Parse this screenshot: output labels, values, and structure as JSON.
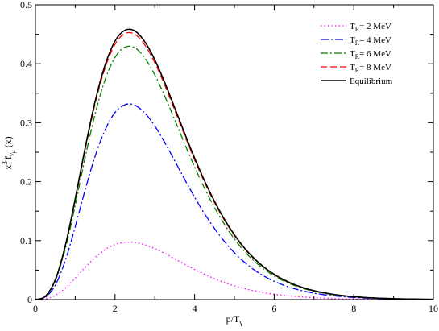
{
  "chart_data": {
    "type": "line",
    "title": "",
    "xlabel": "p/T",
    "xlabel_sub": "γ",
    "ylabel": {
      "base": "x",
      "sup": "3",
      "f": "f",
      "sub": "ν",
      "subsub": "μ",
      "arg": "(x)"
    },
    "xlim": [
      0,
      10
    ],
    "ylim": [
      0,
      0.5
    ],
    "xticks": [
      0,
      2,
      4,
      6,
      8,
      10
    ],
    "xtick_labels": [
      "0",
      "2",
      "4",
      "6",
      "8",
      "10"
    ],
    "yticks": [
      0,
      0.1,
      0.2,
      0.3,
      0.4,
      0.5
    ],
    "ytick_labels": [
      "0",
      "0.1",
      "0.2",
      "0.3",
      "0.4",
      "0.5"
    ],
    "grid": false,
    "legend_position": "top-right",
    "x": [
      0,
      0.25,
      0.5,
      0.75,
      1,
      1.25,
      1.5,
      1.75,
      2,
      2.25,
      2.5,
      2.75,
      3,
      3.25,
      3.5,
      3.75,
      4,
      4.25,
      4.5,
      4.75,
      5,
      5.25,
      5.5,
      5.75,
      6,
      6.25,
      6.5,
      6.75,
      7,
      7.25,
      7.5,
      7.75,
      8,
      8.25,
      8.5,
      8.75,
      9,
      9.25,
      9.5,
      9.75,
      10
    ],
    "series": [
      {
        "name": "T_R = 2 MeV",
        "legend": {
          "base": "T",
          "sub": "R",
          "rest": "= 2 MeV"
        },
        "color": "#ff00ff",
        "dash": "1.5 3",
        "values": [
          0,
          0.0012,
          0.0072,
          0.0194,
          0.0363,
          0.0547,
          0.0715,
          0.0846,
          0.0933,
          0.0972,
          0.0969,
          0.093,
          0.0865,
          0.0783,
          0.0692,
          0.06,
          0.0511,
          0.0429,
          0.0354,
          0.0289,
          0.0233,
          0.0187,
          0.0148,
          0.0117,
          0.0091,
          0.0071,
          0.0055,
          0.0042,
          0.0032,
          0.0025,
          0.0019,
          0.0014,
          0.0011,
          0.0008,
          0.0006,
          0.0005,
          0.0003,
          0.0003,
          0.0002,
          0.0001,
          0.0001
        ]
      },
      {
        "name": "T_R = 4 MeV",
        "legend": {
          "base": "T",
          "sub": "R",
          "rest": "= 4 MeV"
        },
        "color": "#0000ff",
        "dash": "10 3 2 3",
        "values": [
          0,
          0.004,
          0.0245,
          0.0661,
          0.1236,
          0.1862,
          0.2432,
          0.2878,
          0.3174,
          0.3307,
          0.3297,
          0.3164,
          0.2944,
          0.2664,
          0.2355,
          0.204,
          0.1737,
          0.1457,
          0.1206,
          0.0985,
          0.0794,
          0.0635,
          0.0503,
          0.0396,
          0.031,
          0.0241,
          0.0186,
          0.0143,
          0.0109,
          0.0083,
          0.0063,
          0.0048,
          0.0036,
          0.0027,
          0.002,
          0.0015,
          0.0011,
          0.0008,
          0.0006,
          0.0005,
          0.0003
        ]
      },
      {
        "name": "T_R = 6 MeV",
        "legend": {
          "base": "T",
          "sub": "R",
          "rest": "= 6 MeV"
        },
        "color": "#008000",
        "dash": "9 3 2 3",
        "values": [
          0,
          0.0052,
          0.0317,
          0.0856,
          0.1601,
          0.2412,
          0.315,
          0.3727,
          0.411,
          0.4282,
          0.427,
          0.4097,
          0.3813,
          0.345,
          0.305,
          0.2643,
          0.225,
          0.1887,
          0.1561,
          0.1276,
          0.1029,
          0.0822,
          0.0652,
          0.0513,
          0.0401,
          0.0312,
          0.0241,
          0.0185,
          0.0142,
          0.0108,
          0.0082,
          0.0062,
          0.0047,
          0.0035,
          0.0026,
          0.002,
          0.0015,
          0.0011,
          0.0008,
          0.0006,
          0.0004
        ]
      },
      {
        "name": "T_R = 8 MeV",
        "legend": {
          "base": "T",
          "sub": "R",
          "rest": "= 8 MeV"
        },
        "color": "#ff0000",
        "dash": "8 4",
        "values": [
          0,
          0.0054,
          0.0334,
          0.0902,
          0.1687,
          0.2541,
          0.332,
          0.3928,
          0.4331,
          0.4513,
          0.45,
          0.4318,
          0.4018,
          0.3636,
          0.3214,
          0.2785,
          0.2371,
          0.1989,
          0.1645,
          0.1344,
          0.1084,
          0.0866,
          0.0687,
          0.0541,
          0.0423,
          0.0328,
          0.0254,
          0.0195,
          0.0149,
          0.0114,
          0.0086,
          0.0065,
          0.0049,
          0.0037,
          0.0028,
          0.0021,
          0.0015,
          0.0011,
          0.0008,
          0.0006,
          0.0005
        ]
      },
      {
        "name": "Equilibrium",
        "legend": {
          "base": "Equilibrium",
          "sub": "",
          "rest": ""
        },
        "color": "#000000",
        "dash": "",
        "values": [
          0,
          0.0055,
          0.0338,
          0.0913,
          0.1708,
          0.2574,
          0.3361,
          0.3977,
          0.4385,
          0.4569,
          0.4556,
          0.4372,
          0.4068,
          0.3681,
          0.3254,
          0.282,
          0.24,
          0.2014,
          0.1666,
          0.1361,
          0.1098,
          0.0877,
          0.0695,
          0.0547,
          0.0428,
          0.0333,
          0.0257,
          0.0198,
          0.0151,
          0.0115,
          0.0087,
          0.0066,
          0.005,
          0.0037,
          0.0028,
          0.0021,
          0.0016,
          0.0012,
          0.0009,
          0.0006,
          0.0005
        ]
      }
    ]
  }
}
